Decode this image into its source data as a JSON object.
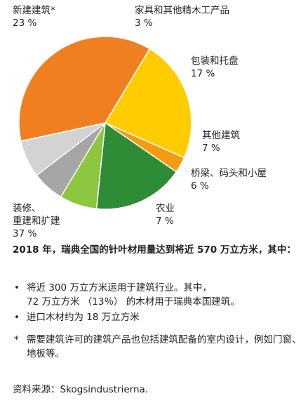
{
  "chart_data": {
    "type": "pie",
    "title": "",
    "slices": [
      {
        "label": "新建建筑*",
        "value": 23,
        "value_label": "23 %",
        "color": "#FFCC00"
      },
      {
        "label": "家具和其他精木工产品",
        "value": 3,
        "value_label": "3 %",
        "color": "#F39C12"
      },
      {
        "label": "包装和托盘",
        "value": 17,
        "value_label": "17 %",
        "color": "#2E8B36"
      },
      {
        "label": "其他建筑",
        "value": 7,
        "value_label": "7 %",
        "color": "#8DC63F"
      },
      {
        "label": "桥梁、码头和小屋",
        "value": 6,
        "value_label": "6 %",
        "color": "#A6A6A6"
      },
      {
        "label": "农业",
        "value": 7,
        "value_label": "7 %",
        "color": "#D3D3D3"
      },
      {
        "label": "装修、\n重建和扩建",
        "value": 37,
        "value_label": "37 %",
        "color": "#F07F22"
      }
    ]
  },
  "summary": "2018 年，瑞典全国的针叶材用量达到将近 570 万立方米，其中：",
  "bullets": [
    "将近 300 万立方米运用于建筑行业。其中，\n72 万立方米 （13％） 的木材用于瑞典本国建筑。",
    "进口木材约为 18 万立方米"
  ],
  "bullet_symbol": "•",
  "footnote_mark": "*",
  "footnote": "需要建筑许可的建筑产品也包括建筑配备的室内设计，例如门窗、地板等。",
  "source": "资料来源：Skogsindustrierna."
}
